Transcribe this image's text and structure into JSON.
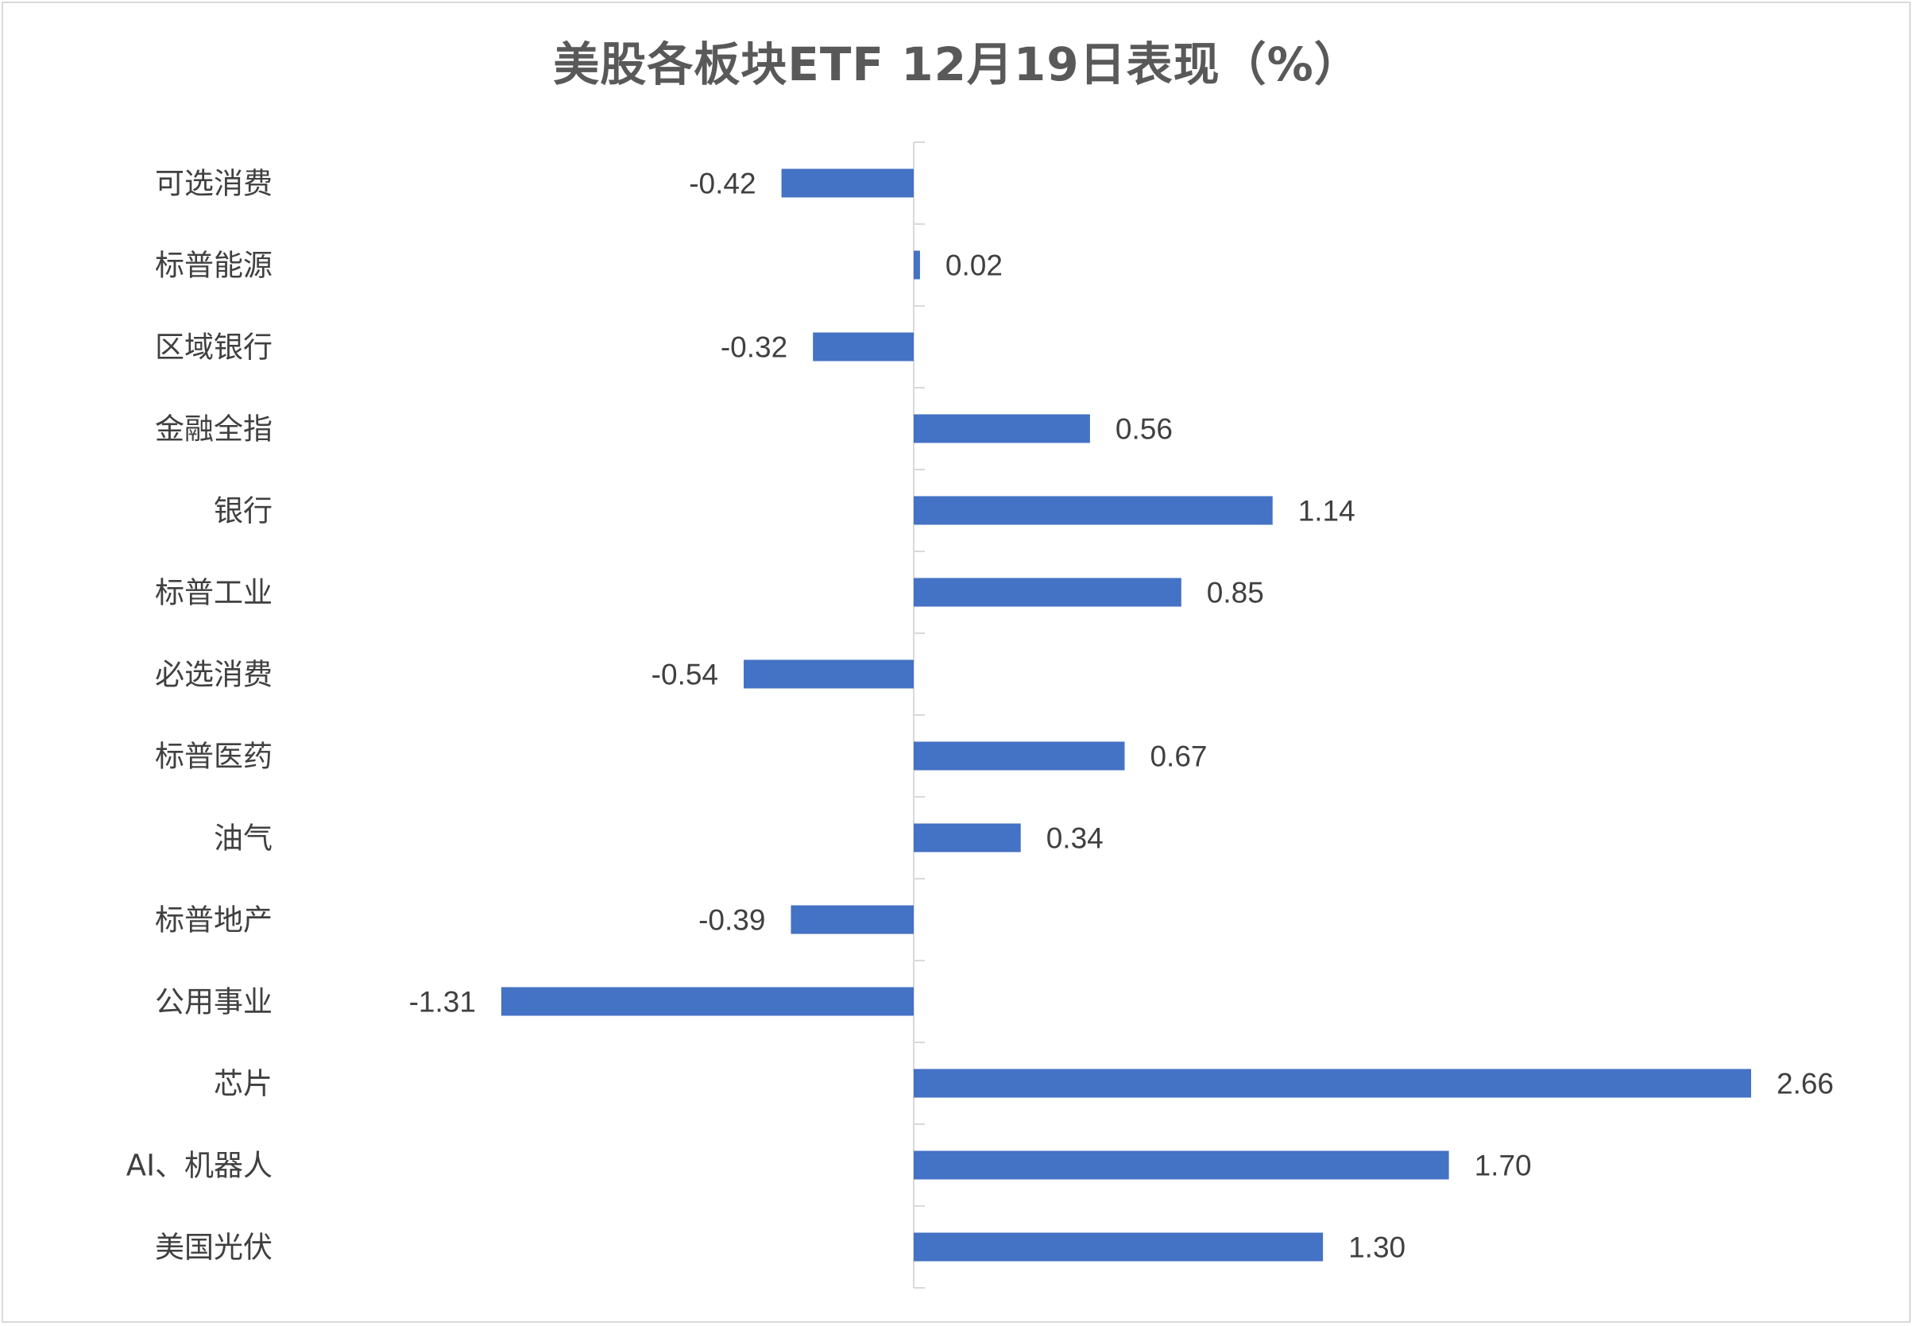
{
  "chart_data": {
    "type": "bar",
    "orientation": "horizontal",
    "title": "美股各板块ETF  12月19日表现（%）",
    "categories": [
      "可选消费",
      "标普能源",
      "区域银行",
      "金融全指",
      "银行",
      "标普工业",
      "必选消费",
      "标普医药",
      "油气",
      "标普地产",
      "公用事业",
      "芯片",
      "AI、机器人",
      "美国光伏"
    ],
    "values": [
      -0.42,
      0.02,
      -0.32,
      0.56,
      1.14,
      0.85,
      -0.54,
      0.67,
      0.34,
      -0.39,
      -1.31,
      2.66,
      1.7,
      1.3
    ],
    "data_labels": [
      "-0.42",
      "0.02",
      "-0.32",
      "0.56",
      "1.14",
      "0.85",
      "-0.54",
      "0.67",
      "0.34",
      "-0.39",
      "-1.31",
      "2.66",
      "1.70",
      "1.30"
    ],
    "xlim": [
      -1.31,
      2.66
    ],
    "grid": false,
    "legend": "none",
    "bar_color": "#4472C4",
    "axis_color": "#d9d9d9"
  }
}
